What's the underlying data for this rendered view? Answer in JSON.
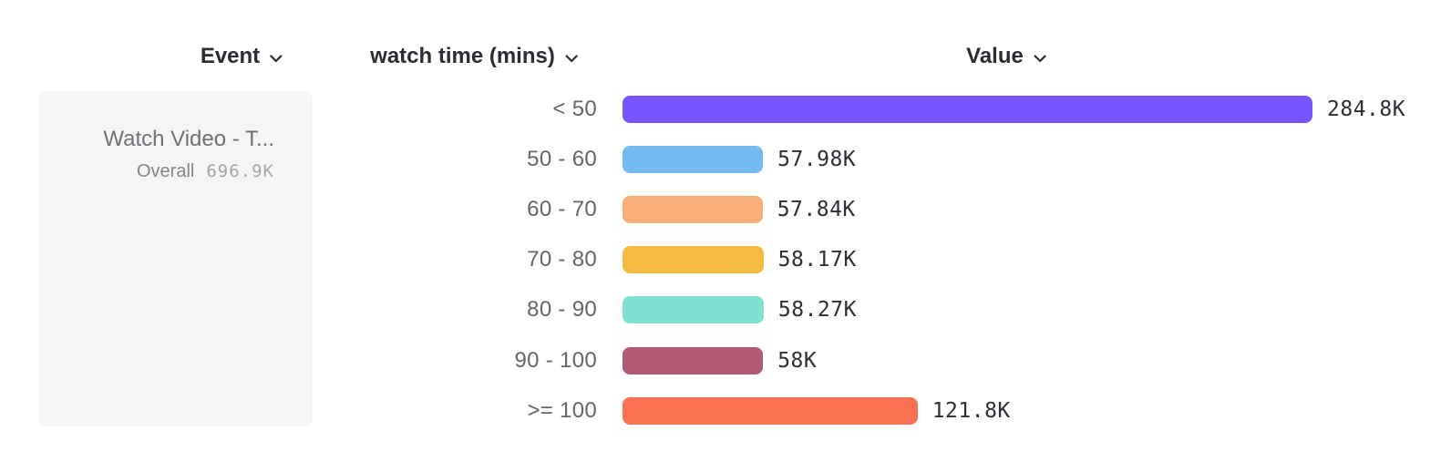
{
  "header": {
    "columns": [
      {
        "id": "event",
        "label": "Event"
      },
      {
        "id": "breakdown",
        "label": "watch time (mins)"
      },
      {
        "id": "value",
        "label": "Value"
      }
    ]
  },
  "event_card": {
    "title": "Watch Video - T...",
    "metric_label": "Overall",
    "metric_value": "696.9K"
  },
  "icons": {
    "dropdown": "chevron-down"
  },
  "chart_data": {
    "type": "bar",
    "orientation": "horizontal",
    "title": "",
    "series_name": "watch time (mins)",
    "categories": [
      "< 50",
      "50 - 60",
      "60 - 70",
      "70 - 80",
      "80 - 90",
      "90 - 100",
      ">= 100"
    ],
    "values": [
      284800,
      57980,
      57840,
      58170,
      58270,
      58000,
      121800
    ],
    "value_labels": [
      "284.8K",
      "57.98K",
      "57.84K",
      "58.17K",
      "58.27K",
      "58K",
      "121.8K"
    ],
    "bar_colors": [
      "#7656FC",
      "#73BAF1",
      "#FBAD79",
      "#F5BB40",
      "#80E0D3",
      "#B15A72",
      "#FD7153"
    ],
    "xlim": [
      0,
      284800
    ],
    "grid": false,
    "legend": "none",
    "overall": {
      "label": "Overall",
      "value": "696.9K"
    }
  }
}
